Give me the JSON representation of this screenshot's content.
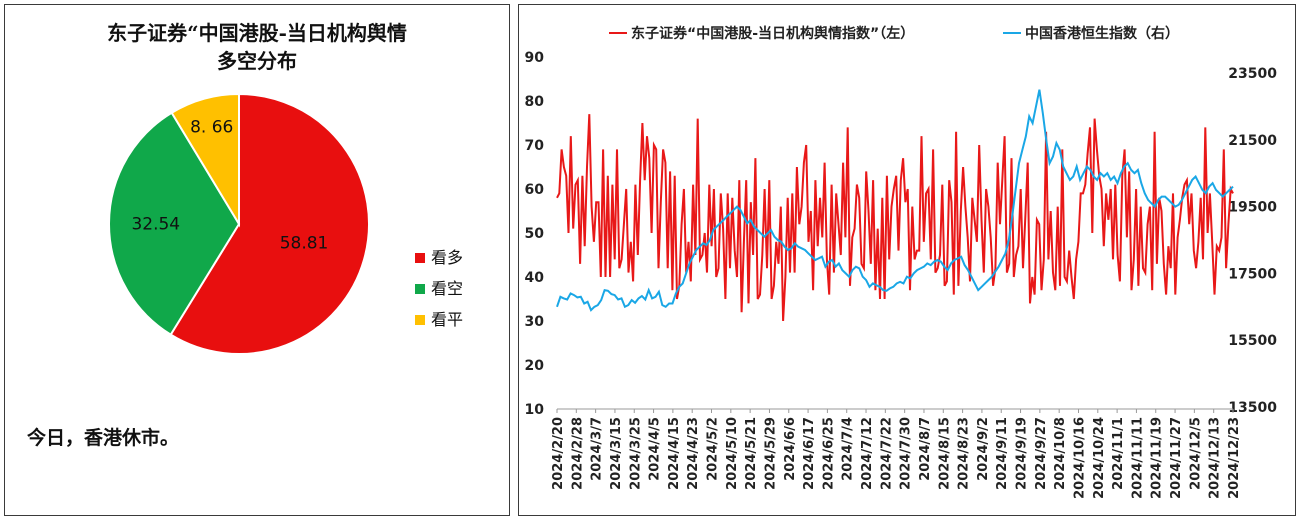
{
  "colors": {
    "bull": "#e80f0f",
    "bear": "#10a84a",
    "neutral": "#ffc000",
    "sentiment_line": "#e81818",
    "hsi_line": "#1aa7e6"
  },
  "chart_data": [
    {
      "type": "pie",
      "title_line1": "东子证券“中国港股-当日机构舆情",
      "title_line2": "多空分布",
      "slices": [
        {
          "label": "看多",
          "value": 58.81,
          "value_label": "58.81"
        },
        {
          "label": "看空",
          "value": 32.54,
          "value_label": "32.54"
        },
        {
          "label": "看平",
          "value": 8.66,
          "value_label": "8. 66"
        }
      ],
      "legend_position": "right"
    },
    {
      "type": "line",
      "series": [
        {
          "name": "东子证券“中国港股-当日机构舆情指数”（左）",
          "axis": "left"
        },
        {
          "name": "中国香港恒生指数（右）",
          "axis": "right"
        }
      ],
      "y_left": {
        "range": [
          10,
          90
        ],
        "ticks": [
          "10",
          "20",
          "30",
          "40",
          "50",
          "60",
          "70",
          "80",
          "90"
        ]
      },
      "y_right": {
        "range": [
          13500,
          23500
        ],
        "ticks": [
          "13500",
          "15500",
          "17500",
          "19500",
          "21500",
          "23500"
        ]
      },
      "x_tick_labels": [
        "2024/2/20",
        "2024/2/28",
        "2024/3/7",
        "2024/3/15",
        "2024/3/25",
        "2024/4/5",
        "2024/4/15",
        "2024/4/23",
        "2024/5/2",
        "2024/5/10",
        "2024/5/21",
        "2024/5/29",
        "2024/6/6",
        "2024/6/17",
        "2024/6/25",
        "2024/7/4",
        "2024/7/12",
        "2024/7/22",
        "2024/7/30",
        "2024/8/7",
        "2024/8/15",
        "2024/8/23",
        "2024/9/2",
        "2024/9/11",
        "2024/9/19",
        "2024/9/27",
        "2024/10/8",
        "2024/10/16",
        "2024/10/24",
        "2024/11/1",
        "2024/11/11",
        "2024/11/19",
        "2024/11/27",
        "2024/12/5",
        "2024/12/13",
        "2024/12/23"
      ],
      "x_tick_positions": [
        0,
        4,
        8,
        12,
        16,
        20,
        24,
        28,
        32,
        36,
        40,
        44,
        48,
        52,
        56,
        60,
        64,
        68,
        72,
        76,
        80,
        84,
        88,
        92,
        96,
        100,
        104,
        108,
        112,
        116,
        120,
        124,
        128,
        132,
        136,
        140
      ],
      "sentiment_values": [
        58,
        59,
        69,
        65,
        63,
        50,
        72,
        51,
        61,
        62,
        43,
        63,
        47,
        65,
        77,
        56,
        48,
        57,
        57,
        40,
        69,
        40,
        63,
        40,
        61,
        44,
        69,
        42,
        44,
        52,
        60,
        41,
        48,
        39,
        61,
        45,
        62,
        75,
        62,
        72,
        67,
        50,
        70,
        69,
        42,
        57,
        69,
        66,
        42,
        64,
        37,
        63,
        35,
        38,
        52,
        60,
        41,
        48,
        39,
        61,
        45,
        76,
        44,
        45,
        50,
        41,
        61,
        47,
        60,
        40,
        42,
        59,
        51,
        35,
        59,
        42,
        58,
        46,
        40,
        62,
        32,
        48,
        62,
        34,
        57,
        45,
        67,
        35,
        36,
        45,
        60,
        42,
        62,
        35,
        38,
        48,
        43,
        56,
        30,
        40,
        58,
        41,
        59,
        41,
        65,
        52,
        56,
        66,
        70,
        48,
        55,
        37,
        62,
        47,
        58,
        49,
        66,
        44,
        36,
        61,
        41,
        59,
        52,
        45,
        66,
        49,
        74,
        38,
        49,
        51,
        61,
        58,
        43,
        42,
        64,
        55,
        43,
        62,
        37,
        51,
        35,
        58,
        35,
        63,
        44,
        56,
        60,
        63,
        46,
        62,
        67,
        57,
        60,
        37,
        56,
        44,
        46,
        46,
        72,
        48,
        59,
        60,
        44,
        69,
        41,
        42,
        45,
        61,
        38,
        39,
        62,
        57,
        36,
        73,
        38,
        55,
        65,
        56,
        49,
        39,
        58,
        53,
        48,
        70,
        53,
        41,
        60,
        56,
        49,
        38,
        42,
        66,
        52,
        62,
        72,
        41,
        43,
        67,
        40,
        45,
        47,
        60,
        42,
        54,
        66,
        34,
        40,
        36,
        53,
        52,
        37,
        44,
        73,
        44,
        55,
        41,
        37,
        56,
        38,
        69,
        40,
        39,
        46,
        40,
        35,
        44,
        48,
        59,
        59,
        61,
        68,
        74,
        50,
        76,
        69,
        63,
        60,
        47,
        59,
        53,
        60,
        44,
        61,
        45,
        39,
        63,
        69,
        49,
        64,
        37,
        44,
        60,
        38,
        56,
        42,
        41,
        52,
        56,
        37,
        73,
        43,
        58,
        55,
        43,
        36,
        47,
        42,
        59,
        36,
        49,
        53,
        58,
        61,
        62,
        52,
        59,
        46,
        42,
        48,
        58,
        44,
        74,
        50,
        59,
        48,
        36,
        47,
        46,
        49,
        69,
        42,
        52,
        60,
        59
      ],
      "hsi_values": [
        16500,
        16800,
        16750,
        16720,
        16900,
        16850,
        16780,
        16800,
        16600,
        16650,
        16400,
        16500,
        16550,
        16700,
        17000,
        16980,
        16880,
        16850,
        16720,
        16750,
        16500,
        16550,
        16700,
        16620,
        16750,
        16820,
        16720,
        17000,
        16750,
        16800,
        16950,
        16550,
        16500,
        16600,
        16600,
        16900,
        17100,
        17200,
        17500,
        17800,
        18000,
        18200,
        18300,
        18400,
        18350,
        18500,
        18800,
        18900,
        19000,
        19100,
        19200,
        19300,
        19400,
        19500,
        19400,
        19200,
        19000,
        19100,
        18900,
        18800,
        18700,
        18600,
        18700,
        18800,
        18600,
        18500,
        18450,
        18300,
        18200,
        18250,
        18400,
        18300,
        18250,
        18200,
        18100,
        18000,
        17900,
        17950,
        18000,
        17700,
        17850,
        17900,
        17700,
        17800,
        17600,
        17500,
        17400,
        17600,
        17700,
        17650,
        17400,
        17300,
        17100,
        17200,
        17150,
        17100,
        17000,
        16980,
        17050,
        17100,
        17200,
        17250,
        17200,
        17400,
        17350,
        17500,
        17600,
        17650,
        17700,
        17800,
        17750,
        17850,
        17900,
        17850,
        17700,
        17600,
        17800,
        17900,
        17950,
        18000,
        17750,
        17600,
        17400,
        17200,
        17000,
        17100,
        17200,
        17300,
        17400,
        17550,
        17700,
        17900,
        18100,
        18500,
        19200,
        20000,
        20800,
        21200,
        21600,
        22200,
        22000,
        22500,
        23000,
        22300,
        21500,
        20800,
        21000,
        21400,
        21200,
        20700,
        20500,
        20300,
        20400,
        20700,
        20300,
        20500,
        20700,
        20600,
        20400,
        20300,
        20500,
        20400,
        20500,
        20300,
        20400,
        20200,
        20500,
        20700,
        20800,
        20600,
        20500,
        20600,
        20200,
        19900,
        19700,
        19600,
        19500,
        19700,
        19800,
        19800,
        19700,
        19600,
        19500,
        19550,
        19700,
        19900,
        20100,
        20300,
        20400,
        20200,
        20000,
        19900,
        20100,
        20200,
        20000,
        19900,
        19800,
        19900,
        20000,
        20100
      ]
    }
  ],
  "left_note": "今日，香港休市。"
}
